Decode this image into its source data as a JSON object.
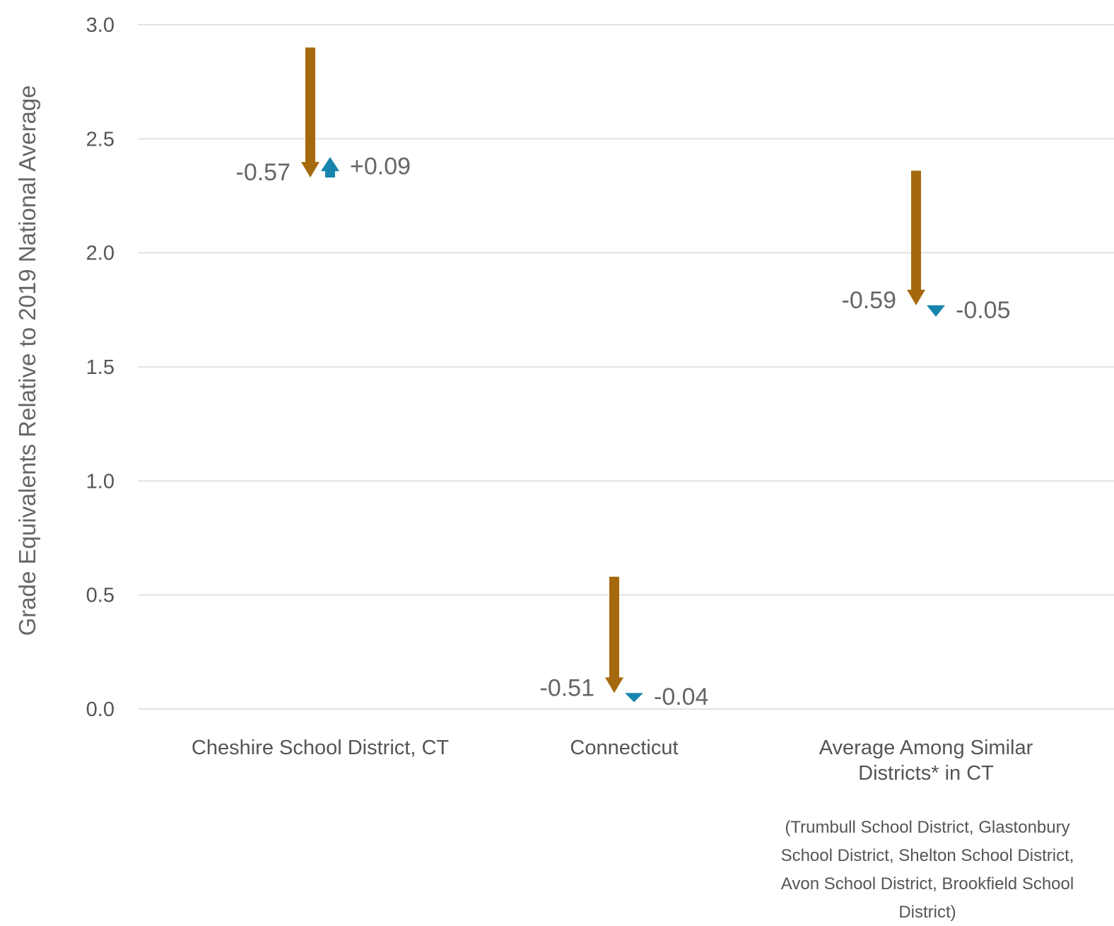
{
  "chart_data": {
    "type": "arrow",
    "ylabel": "Grade Equivalents Relative to 2019 National Average",
    "ylim": [
      0,
      3
    ],
    "yticks": [
      "0.0",
      "0.5",
      "1.0",
      "1.5",
      "2.0",
      "2.5",
      "3.0"
    ],
    "grid": true,
    "colors": {
      "decline": "#A5690D",
      "recovery": "#1585AD"
    },
    "categories": [
      {
        "label_lines": [
          "Cheshire School District, CT"
        ],
        "note_lines": [],
        "start": 2.9,
        "change1": -0.57,
        "change1_label": "-0.57",
        "change2": 0.09,
        "change2_label": "+0.09"
      },
      {
        "label_lines": [
          "Connecticut"
        ],
        "note_lines": [],
        "start": 0.58,
        "change1": -0.51,
        "change1_label": "-0.51",
        "change2": -0.04,
        "change2_label": "-0.04"
      },
      {
        "label_lines": [
          "Average Among Similar",
          "Districts* in CT"
        ],
        "note_lines": [
          "(Trumbull School District, Glastonbury",
          "School District, Shelton School District,",
          "Avon School District, Brookfield School",
          "District)"
        ],
        "start": 2.36,
        "change1": -0.59,
        "change1_label": "-0.59",
        "change2": -0.05,
        "change2_label": "-0.05"
      }
    ]
  }
}
